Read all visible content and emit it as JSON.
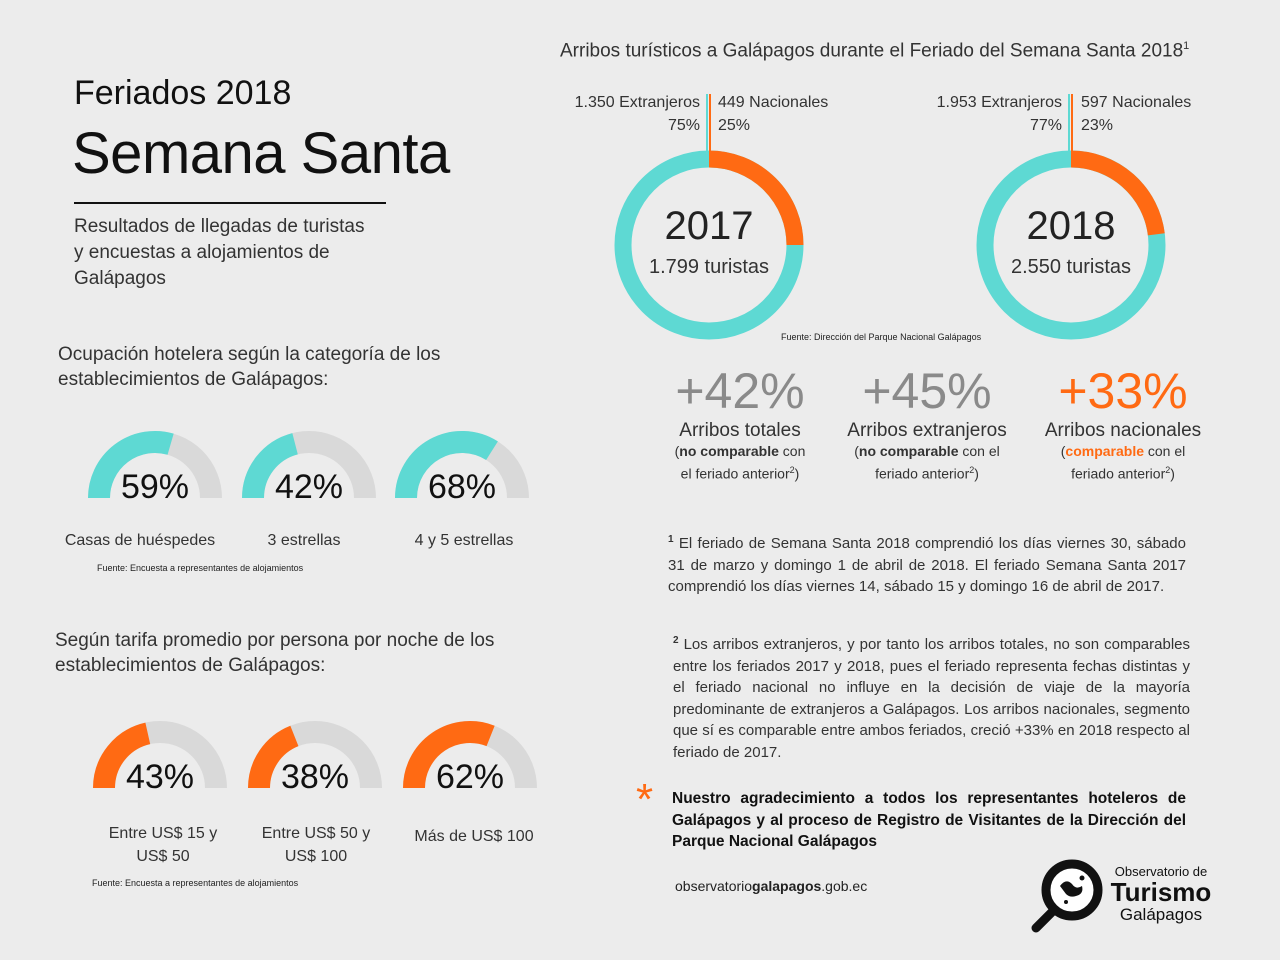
{
  "header": {
    "title_small": "Feriados 2018",
    "title_big": "Semana Santa",
    "subtitle": "Resultados de llegadas de turistas y encuestas a alojamientos de Galápagos"
  },
  "colors": {
    "teal": "#5ed9d3",
    "orange": "#ff6a13",
    "grey": "#d9d9d9"
  },
  "occupancy": {
    "title": "Ocupación hotelera según la categoría de los establecimientos de Galápagos:",
    "items": [
      {
        "value": 59,
        "label": "59%",
        "caption": "Casas de huéspedes"
      },
      {
        "value": 42,
        "label": "42%",
        "caption": "3 estrellas"
      },
      {
        "value": 68,
        "label": "68%",
        "caption": "4 y 5 estrellas"
      }
    ],
    "source": "Fuente: Encuesta a representantes de alojamientos"
  },
  "tariff": {
    "title": "Según tarifa promedio por persona por noche de los establecimientos de Galápagos:",
    "items": [
      {
        "value": 43,
        "label": "43%",
        "caption_1": "Entre US$ 15 y",
        "caption_2": "US$ 50"
      },
      {
        "value": 38,
        "label": "38%",
        "caption_1": "Entre US$ 50 y",
        "caption_2": "US$ 100"
      },
      {
        "value": 62,
        "label": "62%",
        "caption_1": "Más de US$ 100",
        "caption_2": ""
      }
    ],
    "source": "Fuente: Encuesta a representantes de alojamientos"
  },
  "arrivals": {
    "title": "Arribos turísticos a Galápagos durante el Feriado del Semana Santa 2018",
    "title_sup": "1",
    "years": [
      {
        "year": "2017",
        "total": "1.799 turistas",
        "foreign": "1.350 Extranjeros",
        "foreign_pct": "75%",
        "national": "449 Nacionales",
        "national_pct": "25%",
        "national_share": 25
      },
      {
        "year": "2018",
        "total": "2.550 turistas",
        "foreign": "1.953 Extranjeros",
        "foreign_pct": "77%",
        "national": "597 Nacionales",
        "national_pct": "23%",
        "national_share": 23
      }
    ],
    "source": "Fuente: Dirección del Parque Nacional Galápagos"
  },
  "growth": [
    {
      "value": "+42%",
      "label": "Arribos totales",
      "note_pre": "(",
      "note_bold": "no comparable",
      "note_post": " con",
      "note_line2": "el feriado anterior",
      "sup": "2",
      "close": ")"
    },
    {
      "value": "+45%",
      "label": "Arribos extranjeros",
      "note_pre": "(",
      "note_bold": "no comparable",
      "note_post": " con el",
      "note_line2": "feriado anterior",
      "sup": "2",
      "close": ")"
    },
    {
      "value": "+33%",
      "label": "Arribos nacionales",
      "note_pre": "(",
      "note_bold": "comparable",
      "note_post": " con el",
      "note_line2": "feriado anterior",
      "sup": "2",
      "close": ")"
    }
  ],
  "notes": {
    "n1_sup": "1",
    "n1": "El feriado de Semana Santa 2018 comprendió los días viernes 30, sábado 31 de marzo y domingo 1 de abril de 2018. El feriado Semana Santa 2017 comprendió los días viernes 14, sábado 15 y domingo 16 de abril de 2017.",
    "n2_sup": "2",
    "n2": "Los arribos extranjeros, y por tanto los arribos totales, no son comparables entre los feriados 2017 y 2018, pues el feriado representa fechas distintas y el feriado nacional no influye en la decisión de viaje de la mayoría predominante de extranjeros a Galápagos. Los arribos nacionales, segmento que sí es comparable entre ambos feriados, creció +33% en 2018 respecto al feriado de 2017.",
    "asterisk": "*",
    "thanks": "Nuestro agradecimiento a todos los representantes hoteleros de Galápagos y al proceso de Registro de Visitantes de la Dirección del Parque Nacional Galápagos"
  },
  "footer": {
    "url_pre": "observatorio",
    "url_bold": "galapagos",
    "url_post": ".gob.ec",
    "logo_line1": "Observatorio de",
    "logo_line2": "Turismo",
    "logo_line3": "Galápagos"
  }
}
